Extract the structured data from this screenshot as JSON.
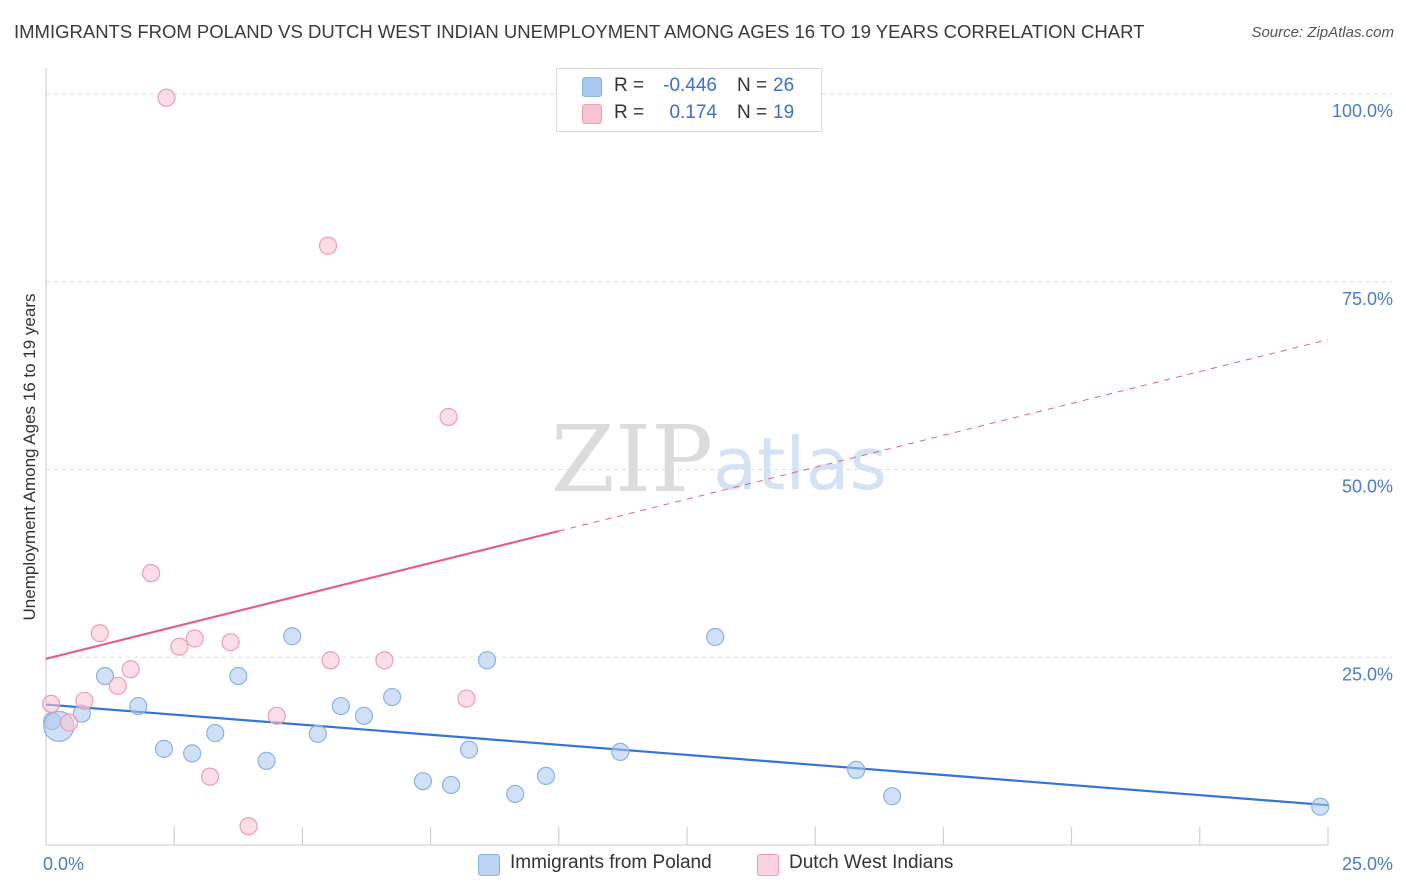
{
  "title": "IMMIGRANTS FROM POLAND VS DUTCH WEST INDIAN UNEMPLOYMENT AMONG AGES 16 TO 19 YEARS CORRELATION CHART",
  "source": "Source: ZipAtlas.com",
  "watermark": {
    "zip": "ZIP",
    "atlas": "atlas"
  },
  "stats": [
    {
      "r_label": "R =",
      "r_value": "-0.446",
      "n_label": "N =",
      "n_value": "26",
      "color": "#a9c8f0",
      "border": "#8ab2e6"
    },
    {
      "r_label": "R =",
      "r_value": "0.174",
      "n_label": "N =",
      "n_value": "19",
      "color": "#f8c3d1",
      "border": "#f09cb4"
    }
  ],
  "legend": [
    {
      "label": "Immigrants from Poland",
      "color": "#bcd5f5",
      "border": "#8ab2e6"
    },
    {
      "label": "Dutch West Indians",
      "color": "#fbd3de",
      "border": "#f09cb4"
    }
  ],
  "colors": {
    "axis_text": "#4a7cc9",
    "value_text": "#3b6fd0",
    "blue_line": "#3674d2",
    "pink_line": "#e0628a"
  },
  "chart_data": {
    "type": "scatter",
    "title": "IMMIGRANTS FROM POLAND VS DUTCH WEST INDIAN UNEMPLOYMENT AMONG AGES 16 TO 19 YEARS CORRELATION CHART",
    "xlabel": "",
    "ylabel": "Unemployment Among Ages 16 to 19 years",
    "x_unit": "%",
    "y_unit": "%",
    "xlim": [
      0,
      25
    ],
    "ylim": [
      0,
      102
    ],
    "x_ticks": [
      "0.0%",
      "25.0%"
    ],
    "y_ticks": [
      "25.0%",
      "50.0%",
      "75.0%",
      "100.0%"
    ],
    "y_tick_values": [
      25,
      50,
      75,
      100
    ],
    "grid": "horizontal dashed",
    "legend_position": "bottom-center",
    "series": [
      {
        "name": "Immigrants from Poland",
        "color": "#a9c8f0",
        "points": [
          [
            0.12,
            16.5
          ],
          [
            0.7,
            17.5
          ],
          [
            1.15,
            22.5
          ],
          [
            1.8,
            18.5
          ],
          [
            2.3,
            12.8
          ],
          [
            2.85,
            12.2
          ],
          [
            3.3,
            14.9
          ],
          [
            3.75,
            22.5
          ],
          [
            4.3,
            11.2
          ],
          [
            4.8,
            27.8
          ],
          [
            5.3,
            14.8
          ],
          [
            5.75,
            18.5
          ],
          [
            6.2,
            17.2
          ],
          [
            6.75,
            19.7
          ],
          [
            7.35,
            8.5
          ],
          [
            7.9,
            8.0
          ],
          [
            8.25,
            12.7
          ],
          [
            8.6,
            24.6
          ],
          [
            9.15,
            6.8
          ],
          [
            9.75,
            9.2
          ],
          [
            11.2,
            12.4
          ],
          [
            13.05,
            27.7
          ],
          [
            15.8,
            10.0
          ],
          [
            16.5,
            6.5
          ],
          [
            24.85,
            5.1
          ],
          [
            0.25,
            15.8
          ]
        ],
        "trend": {
          "x0": 0,
          "y0": 18.7,
          "x1": 25,
          "y1": 5.3,
          "style": "solid"
        }
      },
      {
        "name": "Dutch West Indians",
        "color": "#f8c3d1",
        "points": [
          [
            0.1,
            18.8
          ],
          [
            0.45,
            16.3
          ],
          [
            0.75,
            19.2
          ],
          [
            1.05,
            28.2
          ],
          [
            1.4,
            21.2
          ],
          [
            1.65,
            23.4
          ],
          [
            2.05,
            36.2
          ],
          [
            2.35,
            99.5
          ],
          [
            2.6,
            26.4
          ],
          [
            2.9,
            27.5
          ],
          [
            3.2,
            9.1
          ],
          [
            3.6,
            27.0
          ],
          [
            3.95,
            2.5
          ],
          [
            4.5,
            17.2
          ],
          [
            5.5,
            79.8
          ],
          [
            5.55,
            24.6
          ],
          [
            6.6,
            24.6
          ],
          [
            7.85,
            57.0
          ],
          [
            8.2,
            19.5
          ]
        ],
        "trend": {
          "x0": 0,
          "y0": 24.8,
          "x1": 10,
          "y1": 41.8,
          "x_ext": 25,
          "y_ext": 67.3,
          "style": "solid-then-dashed"
        }
      }
    ]
  }
}
